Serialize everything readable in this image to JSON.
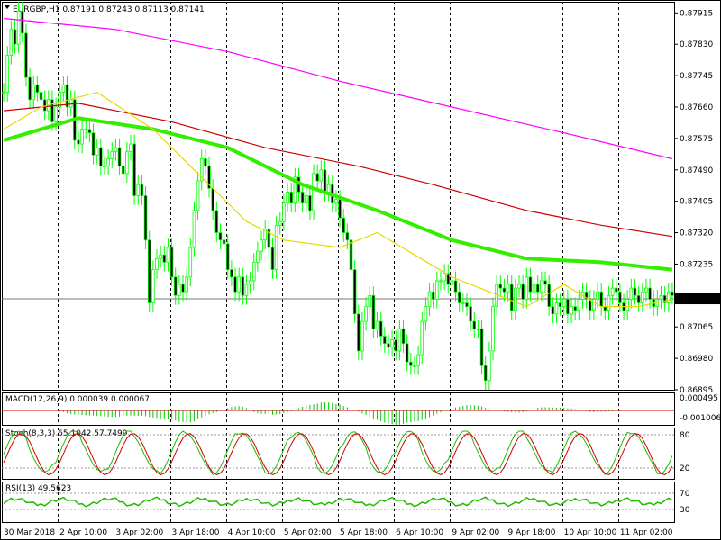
{
  "chart_data": {
    "type": "candlestick",
    "symbol_header": "EURGBP,H1  0.87191 0.87243 0.87113 0.87141",
    "y_ticks": [
      "0.87915",
      "0.87830",
      "0.87745",
      "0.87660",
      "0.87575",
      "0.87490",
      "0.87405",
      "0.87320",
      "0.87235",
      "0.87065",
      "0.86980",
      "0.86895"
    ],
    "ylim": [
      0.86895,
      0.87945
    ],
    "current_price": "0.87141",
    "current_price_value": 0.87141,
    "x_ticks": [
      "30 Mar 2018",
      "2 Apr 10:00",
      "3 Apr 02:00",
      "3 Apr 18:00",
      "4 Apr 10:00",
      "5 Apr 02:00",
      "5 Apr 18:00",
      "6 Apr 10:00",
      "9 Apr 02:00",
      "9 Apr 18:00",
      "10 Apr 10:00",
      "11 Apr 02:00"
    ],
    "bar_count": 180,
    "closes": [
      0.877,
      0.878,
      0.8787,
      0.8783,
      0.8792,
      0.8786,
      0.8774,
      0.8768,
      0.8772,
      0.877,
      0.8768,
      0.8765,
      0.8768,
      0.8762,
      0.8766,
      0.877,
      0.8772,
      0.8766,
      0.8768,
      0.8757,
      0.8756,
      0.876,
      0.876,
      0.8759,
      0.8753,
      0.8755,
      0.875,
      0.875,
      0.8752,
      0.8754,
      0.8755,
      0.875,
      0.8748,
      0.8754,
      0.8756,
      0.8742,
      0.8745,
      0.8742,
      0.873,
      0.8713,
      0.8722,
      0.8725,
      0.8726,
      0.8724,
      0.8728,
      0.872,
      0.8715,
      0.8718,
      0.8716,
      0.872,
      0.8728,
      0.8738,
      0.8746,
      0.8752,
      0.875,
      0.8744,
      0.8738,
      0.8732,
      0.873,
      0.8729,
      0.8722,
      0.872,
      0.8716,
      0.872,
      0.8715,
      0.8718,
      0.8719,
      0.8724,
      0.8727,
      0.873,
      0.8733,
      0.8728,
      0.8722,
      0.8734,
      0.8735,
      0.874,
      0.8743,
      0.874,
      0.8747,
      0.8743,
      0.874,
      0.8742,
      0.8738,
      0.8748,
      0.8746,
      0.8749,
      0.8743,
      0.8745,
      0.874,
      0.8741,
      0.8736,
      0.8732,
      0.873,
      0.8722,
      0.871,
      0.87,
      0.8708,
      0.8712,
      0.8715,
      0.8706,
      0.8708,
      0.8704,
      0.8702,
      0.8701,
      0.8703,
      0.87,
      0.8706,
      0.8702,
      0.8697,
      0.8696,
      0.8696,
      0.8699,
      0.8708,
      0.8712,
      0.8716,
      0.8714,
      0.8719,
      0.8719,
      0.8721,
      0.8718,
      0.8719,
      0.8716,
      0.8713,
      0.8713,
      0.8712,
      0.8708,
      0.8706,
      0.8706,
      0.8696,
      0.8692,
      0.87,
      0.8712,
      0.8718,
      0.8717,
      0.8716,
      0.8718,
      0.8711,
      0.8717,
      0.8718,
      0.8714,
      0.872,
      0.8716,
      0.8718,
      0.8716,
      0.8719,
      0.8718,
      0.8712,
      0.871,
      0.8713,
      0.8712,
      0.8714,
      0.871,
      0.8712,
      0.8711,
      0.8714,
      0.8716,
      0.8714,
      0.8711,
      0.8714,
      0.8716,
      0.8712,
      0.8711,
      0.8715,
      0.8717,
      0.8716,
      0.8713,
      0.8711,
      0.8714,
      0.8717,
      0.8715,
      0.8713,
      0.8716,
      0.8717,
      0.8714,
      0.8712,
      0.8714,
      0.8715,
      0.8713,
      0.8716,
      0.8715,
      0.8714,
      0.8714
    ],
    "ma_lines": [
      {
        "color": "#ff00ff",
        "points": [
          [
            0,
            0.879
          ],
          [
            30,
            0.8787
          ],
          [
            60,
            0.8781
          ],
          [
            90,
            0.8773
          ],
          [
            120,
            0.8766
          ],
          [
            150,
            0.8759
          ],
          [
            179,
            0.8752
          ]
        ]
      },
      {
        "color": "#cc0000",
        "points": [
          [
            0,
            0.8765
          ],
          [
            20,
            0.8767
          ],
          [
            45,
            0.8762
          ],
          [
            70,
            0.8755
          ],
          [
            95,
            0.875
          ],
          [
            115,
            0.8745
          ],
          [
            140,
            0.8738
          ],
          [
            160,
            0.8734
          ],
          [
            179,
            0.8731
          ]
        ]
      },
      {
        "color": "#33ee00",
        "points": [
          [
            0,
            0.8757
          ],
          [
            20,
            0.8763
          ],
          [
            40,
            0.876
          ],
          [
            60,
            0.8755
          ],
          [
            80,
            0.8745
          ],
          [
            100,
            0.8738
          ],
          [
            120,
            0.873
          ],
          [
            140,
            0.8725
          ],
          [
            160,
            0.8724
          ],
          [
            179,
            0.8722
          ]
        ]
      },
      {
        "color": "#e8d800",
        "points": [
          [
            0,
            0.876
          ],
          [
            10,
            0.8766
          ],
          [
            25,
            0.877
          ],
          [
            40,
            0.876
          ],
          [
            55,
            0.8745
          ],
          [
            65,
            0.8735
          ],
          [
            75,
            0.873
          ],
          [
            90,
            0.8728
          ],
          [
            100,
            0.8732
          ],
          [
            110,
            0.8726
          ],
          [
            120,
            0.872
          ],
          [
            130,
            0.8716
          ],
          [
            140,
            0.8712
          ],
          [
            150,
            0.8718
          ],
          [
            160,
            0.8712
          ],
          [
            170,
            0.8712
          ],
          [
            179,
            0.8714
          ]
        ]
      }
    ],
    "macd": {
      "label": "MACD(12,26,9) 0.000039 0.000067",
      "ticks": [
        "0.000495",
        "-0.001006"
      ]
    },
    "stoch": {
      "label": "Stoch(8,3,3) 65.1042 57.7499",
      "ticks": [
        "80",
        "20"
      ]
    },
    "rsi": {
      "label": "RSI(13) 49.5623",
      "ticks": [
        "70",
        "30"
      ]
    },
    "colors": {
      "up": "#00ff00",
      "down": "#00ff00",
      "signal": "#cc0000",
      "grid": "#000000"
    }
  }
}
